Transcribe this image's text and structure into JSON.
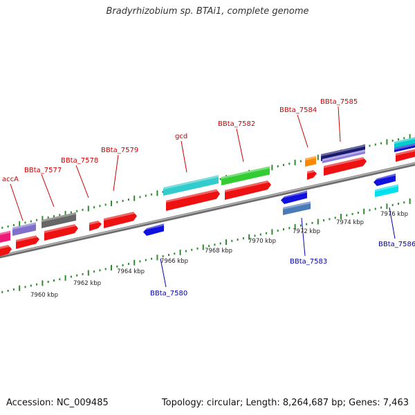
{
  "title": "Bradyrhizobium sp. BTAi1, complete genome",
  "accession": "Accession: NC_009485",
  "summary": "Topology: circular; Length: 8,264,687 bp; Genes: 7,463",
  "scale_labels": [
    "7960 kbp",
    "7962 kbp",
    "7964 kbp",
    "7966 kbp",
    "7968 kbp",
    "7970 kbp",
    "7972 kbp",
    "7974 kbp",
    "7976 kbp"
  ],
  "colors": {
    "forward_label": "#cc0000",
    "reverse_label": "#0000aa",
    "backbone": "#8a8a8a",
    "tick": "#2e8b2e"
  },
  "genes_top": [
    "accA",
    "BBta_7577",
    "BBta_7578",
    "BBta_7579",
    "gcd",
    "BBta_7582",
    "BBta_7584",
    "BBta_7585"
  ],
  "genes_bottom": [
    "BBta_7580",
    "BBta_7583",
    "BBta_7586"
  ]
}
